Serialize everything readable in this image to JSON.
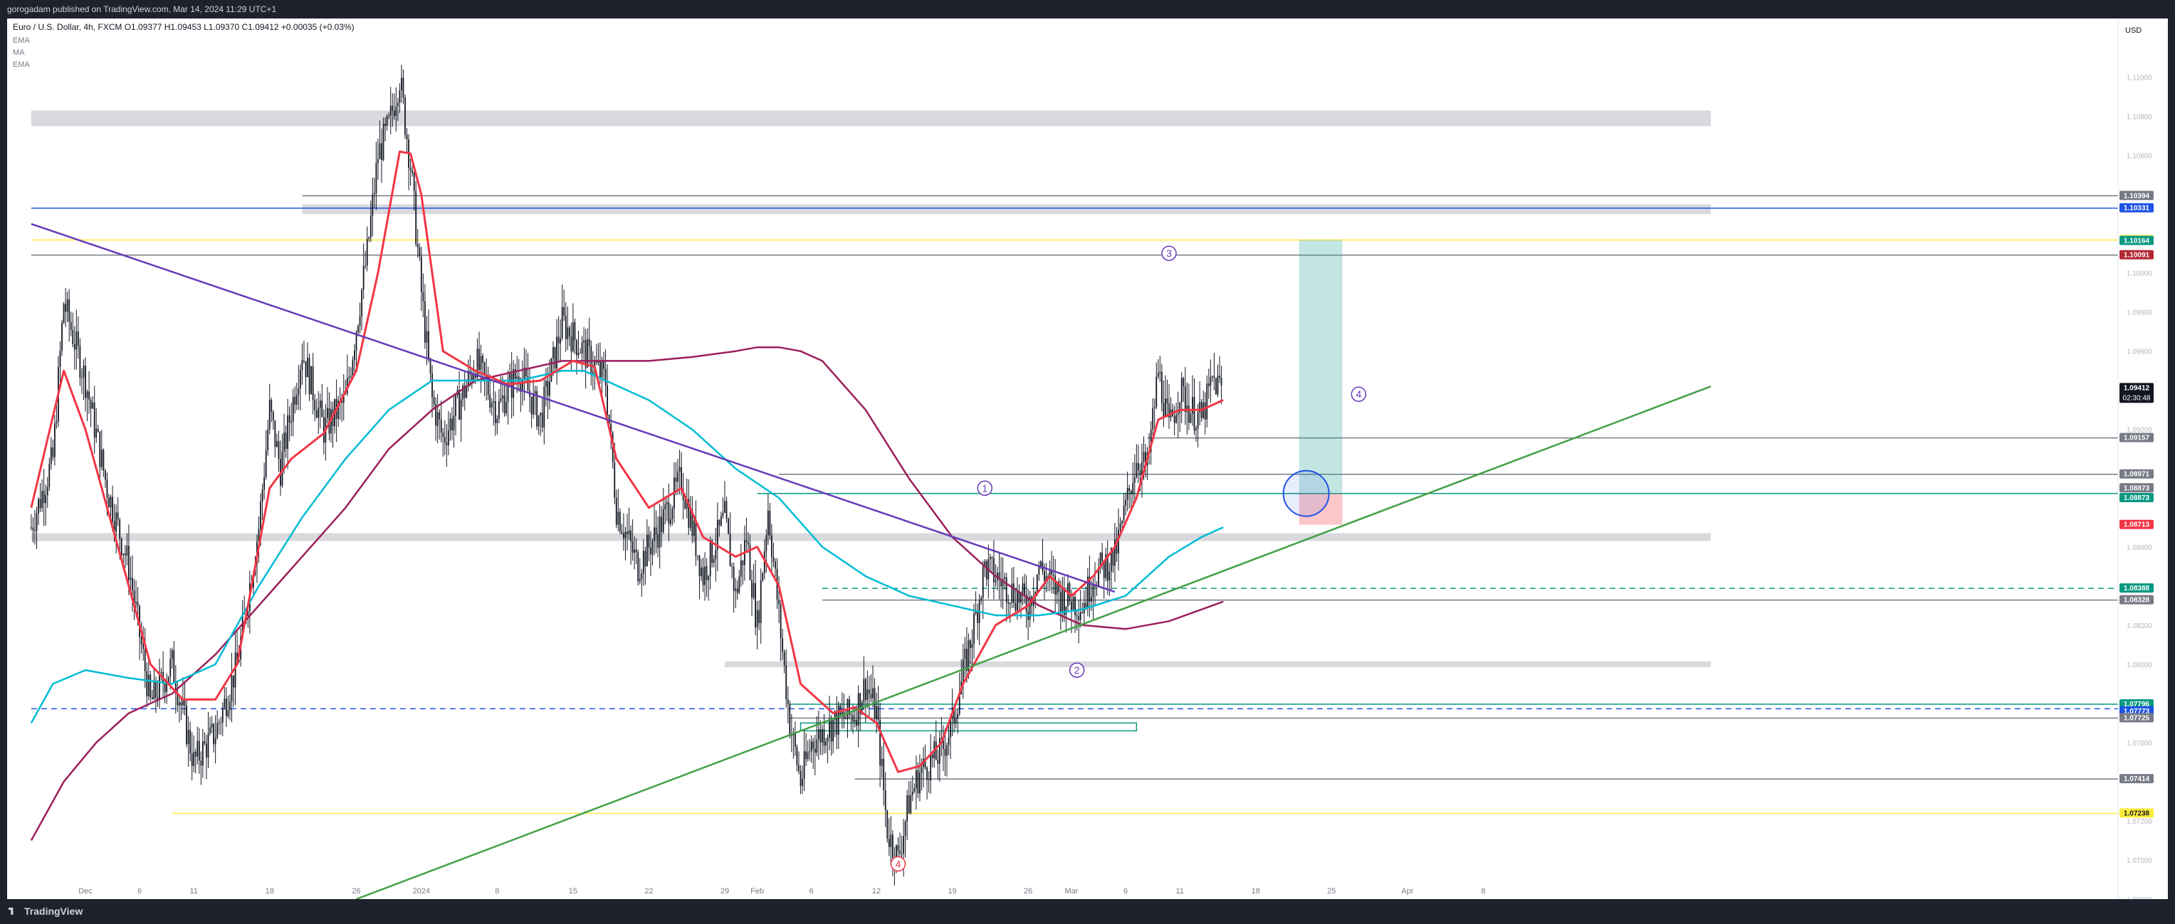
{
  "header": {
    "published": "gorogadam published on TradingView.com, Mar 14, 2024 11:29 UTC+1"
  },
  "legend": {
    "symbol": "Euro / U.S. Dollar, 4h, FXCM",
    "ohlc": "O1.09377 H1.09453 L1.09370 C1.09412 +0.00035 (+0.03%)",
    "indicators": [
      "EMA",
      "MA",
      "EMA"
    ]
  },
  "footer": {
    "brand": "TradingView"
  },
  "colors": {
    "up": "#26a69a",
    "candle": "#131722",
    "ema_fast": "#f23645",
    "ma": "#00bcd4",
    "ema_slow": "#9c1f5c",
    "trend_purple": "#673ab7",
    "trend_green": "#43a047",
    "yellow": "#ffeb3b",
    "orange": "#ff9800",
    "blue": "#1e53e5",
    "teal": "#089981",
    "gray": "#787b86"
  },
  "chart_data": {
    "type": "candlestick",
    "timeframe": "4h",
    "currency": "USD",
    "ylim": [
      1.068,
      1.113
    ],
    "y_ticks": [
      "1.11000",
      "1.10800",
      "1.10600",
      "1.10000",
      "1.09800",
      "1.09600",
      "1.09200",
      "1.08600",
      "1.08200",
      "1.08000",
      "1.07600",
      "1.07200",
      "1.07000",
      "1.06800"
    ],
    "x_ticks": [
      {
        "label": "Dec",
        "d": 0
      },
      {
        "label": "6",
        "d": 5
      },
      {
        "label": "11",
        "d": 10
      },
      {
        "label": "18",
        "d": 17
      },
      {
        "label": "26",
        "d": 25
      },
      {
        "label": "2024",
        "d": 31
      },
      {
        "label": "8",
        "d": 38
      },
      {
        "label": "15",
        "d": 45
      },
      {
        "label": "22",
        "d": 52
      },
      {
        "label": "29",
        "d": 59
      },
      {
        "label": "Feb",
        "d": 62
      },
      {
        "label": "6",
        "d": 67
      },
      {
        "label": "12",
        "d": 73
      },
      {
        "label": "19",
        "d": 80
      },
      {
        "label": "26",
        "d": 87
      },
      {
        "label": "Mar",
        "d": 91
      },
      {
        "label": "6",
        "d": 96
      },
      {
        "label": "11",
        "d": 101
      },
      {
        "label": "18",
        "d": 108
      },
      {
        "label": "25",
        "d": 115
      },
      {
        "label": "Apr",
        "d": 122
      },
      {
        "label": "8",
        "d": 129
      }
    ],
    "price_path": [
      [
        -5,
        1.087
      ],
      [
        -3,
        1.0905
      ],
      [
        -2,
        1.0985
      ],
      [
        0,
        1.0945
      ],
      [
        2,
        1.089
      ],
      [
        4,
        1.085
      ],
      [
        6,
        1.078
      ],
      [
        8,
        1.08
      ],
      [
        10,
        1.075
      ],
      [
        12,
        1.0765
      ],
      [
        14,
        1.08
      ],
      [
        16,
        1.087
      ],
      [
        17,
        1.093
      ],
      [
        18,
        1.09
      ],
      [
        20,
        1.096
      ],
      [
        22,
        1.092
      ],
      [
        24,
        1.0935
      ],
      [
        26,
        1.101
      ],
      [
        27,
        1.106
      ],
      [
        28,
        1.1075
      ],
      [
        29,
        1.11
      ],
      [
        30,
        1.1055
      ],
      [
        31,
        1.099
      ],
      [
        32,
        1.0935
      ],
      [
        33,
        1.0915
      ],
      [
        35,
        1.094
      ],
      [
        36,
        1.0955
      ],
      [
        38,
        1.093
      ],
      [
        40,
        1.095
      ],
      [
        42,
        1.0925
      ],
      [
        44,
        1.0975
      ],
      [
        46,
        1.096
      ],
      [
        48,
        1.0945
      ],
      [
        49,
        1.088
      ],
      [
        51,
        1.085
      ],
      [
        53,
        1.087
      ],
      [
        55,
        1.0895
      ],
      [
        57,
        1.0845
      ],
      [
        59,
        1.0875
      ],
      [
        60,
        1.0835
      ],
      [
        61,
        1.0865
      ],
      [
        62,
        1.082
      ],
      [
        63,
        1.088
      ],
      [
        64,
        1.0825
      ],
      [
        65,
        1.077
      ],
      [
        66,
        1.074
      ],
      [
        67,
        1.076
      ],
      [
        69,
        1.077
      ],
      [
        71,
        1.0775
      ],
      [
        72,
        1.079
      ],
      [
        73,
        1.0775
      ],
      [
        74,
        1.0715
      ],
      [
        75,
        1.07
      ],
      [
        76,
        1.073
      ],
      [
        77,
        1.0745
      ],
      [
        79,
        1.0755
      ],
      [
        80,
        1.077
      ],
      [
        82,
        1.082
      ],
      [
        83,
        1.085
      ],
      [
        85,
        1.084
      ],
      [
        87,
        1.083
      ],
      [
        88,
        1.085
      ],
      [
        90,
        1.0835
      ],
      [
        92,
        1.083
      ],
      [
        93,
        1.0845
      ],
      [
        95,
        1.0855
      ],
      [
        96,
        1.088
      ],
      [
        97,
        1.0905
      ],
      [
        98,
        1.09
      ],
      [
        99,
        1.095
      ],
      [
        100,
        1.092
      ],
      [
        101,
        1.094
      ],
      [
        102,
        1.093
      ],
      [
        103,
        1.0925
      ],
      [
        104,
        1.0945
      ],
      [
        105,
        1.0941
      ]
    ],
    "ema_fast": [
      [
        -5,
        1.088
      ],
      [
        -2,
        1.095
      ],
      [
        0,
        1.092
      ],
      [
        3,
        1.086
      ],
      [
        6,
        1.08
      ],
      [
        9,
        1.0782
      ],
      [
        12,
        1.0782
      ],
      [
        14,
        1.08
      ],
      [
        17,
        1.089
      ],
      [
        19,
        1.0905
      ],
      [
        22,
        1.0918
      ],
      [
        25,
        1.095
      ],
      [
        27,
        1.1
      ],
      [
        29,
        1.1062
      ],
      [
        30,
        1.1061
      ],
      [
        31,
        1.104
      ],
      [
        33,
        1.096
      ],
      [
        36,
        1.095
      ],
      [
        39,
        1.0943
      ],
      [
        42,
        1.0945
      ],
      [
        45,
        1.0955
      ],
      [
        47,
        1.0952
      ],
      [
        49,
        1.0905
      ],
      [
        52,
        1.088
      ],
      [
        55,
        1.089
      ],
      [
        57,
        1.0865
      ],
      [
        60,
        1.0855
      ],
      [
        62,
        1.086
      ],
      [
        64,
        1.084
      ],
      [
        66,
        1.079
      ],
      [
        69,
        1.0775
      ],
      [
        71,
        1.0778
      ],
      [
        73,
        1.077
      ],
      [
        75,
        1.0745
      ],
      [
        77,
        1.0748
      ],
      [
        79,
        1.076
      ],
      [
        81,
        1.079
      ],
      [
        84,
        1.082
      ],
      [
        87,
        1.083
      ],
      [
        89,
        1.0845
      ],
      [
        91,
        1.0835
      ],
      [
        93,
        1.0845
      ],
      [
        95,
        1.086
      ],
      [
        97,
        1.0885
      ],
      [
        99,
        1.0925
      ],
      [
        101,
        1.093
      ],
      [
        103,
        1.093
      ],
      [
        105,
        1.0935
      ]
    ],
    "ma": [
      [
        -5,
        1.077
      ],
      [
        -3,
        1.079
      ],
      [
        0,
        1.0797
      ],
      [
        4,
        1.0793
      ],
      [
        8,
        1.079
      ],
      [
        12,
        1.08
      ],
      [
        16,
        1.084
      ],
      [
        20,
        1.0875
      ],
      [
        24,
        1.0905
      ],
      [
        28,
        1.093
      ],
      [
        32,
        1.0945
      ],
      [
        36,
        1.0945
      ],
      [
        40,
        1.0945
      ],
      [
        44,
        1.095
      ],
      [
        46,
        1.095
      ],
      [
        48,
        1.0945
      ],
      [
        52,
        1.0935
      ],
      [
        56,
        1.092
      ],
      [
        60,
        1.09
      ],
      [
        64,
        1.0885
      ],
      [
        68,
        1.086
      ],
      [
        72,
        1.0845
      ],
      [
        76,
        1.0835
      ],
      [
        80,
        1.083
      ],
      [
        84,
        1.0825
      ],
      [
        88,
        1.0825
      ],
      [
        92,
        1.0828
      ],
      [
        96,
        1.0835
      ],
      [
        100,
        1.0855
      ],
      [
        103,
        1.0865
      ],
      [
        105,
        1.087
      ]
    ],
    "ema_slow": [
      [
        -5,
        1.071
      ],
      [
        -2,
        1.074
      ],
      [
        1,
        1.076
      ],
      [
        4,
        1.0775
      ],
      [
        8,
        1.0785
      ],
      [
        12,
        1.0805
      ],
      [
        16,
        1.083
      ],
      [
        20,
        1.0855
      ],
      [
        24,
        1.088
      ],
      [
        28,
        1.091
      ],
      [
        32,
        1.093
      ],
      [
        36,
        1.0945
      ],
      [
        40,
        1.095
      ],
      [
        44,
        1.0955
      ],
      [
        48,
        1.0955
      ],
      [
        52,
        1.0955
      ],
      [
        56,
        1.0957
      ],
      [
        60,
        1.096
      ],
      [
        62,
        1.0962
      ],
      [
        64,
        1.0962
      ],
      [
        66,
        1.096
      ],
      [
        68,
        1.0955
      ],
      [
        72,
        1.093
      ],
      [
        76,
        1.0895
      ],
      [
        80,
        1.0865
      ],
      [
        84,
        1.0845
      ],
      [
        88,
        1.083
      ],
      [
        92,
        1.082
      ],
      [
        96,
        1.0818
      ],
      [
        100,
        1.0822
      ],
      [
        103,
        1.0828
      ],
      [
        105,
        1.0832
      ]
    ],
    "trendlines": [
      {
        "name": "descending",
        "color": "trend_purple",
        "x1": -5,
        "y1": 1.1025,
        "x2": 95,
        "y2": 1.0837
      },
      {
        "name": "ascending",
        "color": "trend_green",
        "x1": 25,
        "y1": 1.068,
        "x2": 150,
        "y2": 1.0942
      }
    ],
    "hlines": [
      {
        "y": 1.10394,
        "color": "gray",
        "x1": 20
      },
      {
        "y": 1.10331,
        "color": "blue",
        "x1": -5
      },
      {
        "y": 1.10168,
        "color": "yellow",
        "x1": -5
      },
      {
        "y": 1.10091,
        "color": "gray",
        "x1": -5
      },
      {
        "y": 1.09157,
        "color": "gray",
        "x1": 98
      },
      {
        "y": 1.08971,
        "color": "gray",
        "x1": 64
      },
      {
        "y": 1.08873,
        "color": "teal",
        "x1": 62
      },
      {
        "y": 1.08328,
        "color": "gray",
        "x1": 68
      },
      {
        "y": 1.08388,
        "color": "teal",
        "x1": 68,
        "dashed": true
      },
      {
        "y": 1.07796,
        "color": "teal",
        "x1": 65
      },
      {
        "y": 1.07773,
        "color": "blue",
        "x1": -5,
        "dashed": true
      },
      {
        "y": 1.07725,
        "color": "gray",
        "x1": 65
      },
      {
        "y": 1.07414,
        "color": "gray",
        "x1": 71
      },
      {
        "y": 1.07238,
        "color": "yellow",
        "x1": 8
      }
    ],
    "zones": [
      {
        "y1": 1.1075,
        "y2": 1.1083,
        "x1": -5,
        "x2": 150,
        "color": "#d9d9de"
      },
      {
        "y1": 1.103,
        "y2": 1.1035,
        "x1": 20,
        "x2": 150,
        "color": "#d9d9de"
      },
      {
        "y1": 1.0863,
        "y2": 1.0867,
        "x1": -5,
        "x2": 150,
        "color": "#d9d9de"
      },
      {
        "y1": 1.07985,
        "y2": 1.08015,
        "x1": 59,
        "x2": 150,
        "color": "#d9d9de"
      },
      {
        "y1": 1.0766,
        "y2": 1.077,
        "x1": 66,
        "x2": 97,
        "color": "none"
      }
    ],
    "position": {
      "x1": 112,
      "x2": 116,
      "entry": 1.08873,
      "target": 1.10168,
      "stop": 1.08713
    },
    "price_labels": [
      {
        "text": "1.10394",
        "bg": "#787b86",
        "y": 1.10394
      },
      {
        "text": "1.10331",
        "bg": "#1e53e5",
        "y": 1.10331
      },
      {
        "text": "1.10168",
        "bg": "#ffeb3b",
        "y": 1.10168,
        "fg": "#131722"
      },
      {
        "text": "1.10164",
        "bg": "#089981",
        "y": 1.10164
      },
      {
        "text": "1.10091",
        "bg": "#b22833",
        "y": 1.10091
      },
      {
        "text": "1.09412",
        "bg": "#131722",
        "y": 1.09412,
        "sub": "02:30:48"
      },
      {
        "text": "1.09157",
        "bg": "#787b86",
        "y": 1.09157
      },
      {
        "text": "1.08971",
        "bg": "#787b86",
        "y": 1.08971
      },
      {
        "text": "1.08873",
        "bg": "#787b86",
        "y": 1.089
      },
      {
        "text": "1.08873",
        "bg": "#089981",
        "y": 1.0885
      },
      {
        "text": "1.08713",
        "bg": "#f23645",
        "y": 1.08713
      },
      {
        "text": "1.08388",
        "bg": "#089981",
        "y": 1.08388
      },
      {
        "text": "1.08328",
        "bg": "#787b86",
        "y": 1.08328
      },
      {
        "text": "1.07796",
        "bg": "#089981",
        "y": 1.07796
      },
      {
        "text": "1.07773",
        "bg": "#1e53e5",
        "y": 1.0776
      },
      {
        "text": "1.07725",
        "bg": "#787b86",
        "y": 1.07725
      },
      {
        "text": "1.07414",
        "bg": "#787b86",
        "y": 1.07414
      },
      {
        "text": "1.07238",
        "bg": "#ffeb3b",
        "y": 1.07238,
        "fg": "#131722"
      }
    ],
    "wave_labels": [
      {
        "text": "1",
        "d": 83,
        "y": 1.089,
        "color": "#673ab7"
      },
      {
        "text": "2",
        "d": 91.5,
        "y": 1.0797,
        "color": "#673ab7"
      },
      {
        "text": "3",
        "d": 100,
        "y": 1.101,
        "color": "#673ab7"
      },
      {
        "text": "4",
        "d": 75,
        "y": 1.0698,
        "color": "#f23645"
      },
      {
        "text": "4",
        "d": 117.5,
        "y": 1.0938,
        "color": "#673ab7"
      }
    ]
  }
}
